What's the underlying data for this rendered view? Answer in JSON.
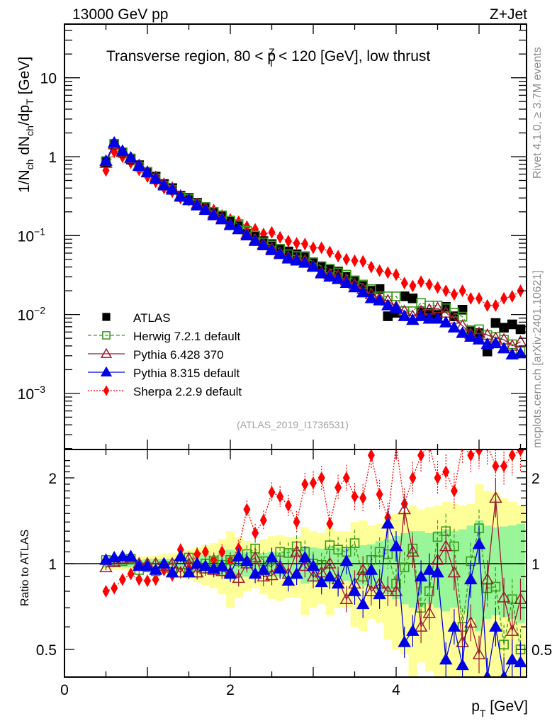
{
  "header": {
    "energy_label": "13000 GeV pp",
    "process_label": "Z+Jet"
  },
  "side_labels": {
    "rivet": "Rivet 4.1.0, ≥ 3.7M events",
    "mcplots": "mcplots.cern.ch [arXiv:2401.10621]"
  },
  "analysis_id": "(ATLAS_2019_I1736531)",
  "chart_data": [
    {
      "type": "scatter",
      "panel": "main",
      "title": "Transverse region, 80 < p_T^Z < 120 [GeV], low thrust",
      "title_parts": {
        "pre": "Transverse region, 80 < p",
        "sup": "Z",
        "sub": "T",
        "post": " < 120 [GeV], low thrust"
      },
      "xlabel": "p_T [GeV]",
      "ylabel": "1/N_ch dN_ch/dp_T [GeV]",
      "yscale": "log",
      "xlim": [
        0,
        5.6
      ],
      "ylim": [
        0.00025,
        45
      ],
      "x_ticks": [
        "0",
        "2",
        "4"
      ],
      "y_ticks": [
        "10",
        "1",
        "10^-1",
        "10^-2",
        "10^-3"
      ],
      "legend_position": "center-left",
      "x": [
        0.5,
        0.6,
        0.7,
        0.8,
        0.9,
        1.0,
        1.1,
        1.2,
        1.3,
        1.4,
        1.5,
        1.6,
        1.7,
        1.8,
        1.9,
        2.0,
        2.1,
        2.2,
        2.3,
        2.4,
        2.5,
        2.6,
        2.7,
        2.8,
        2.9,
        3.0,
        3.1,
        3.2,
        3.3,
        3.4,
        3.5,
        3.6,
        3.7,
        3.8,
        3.9,
        4.0,
        4.1,
        4.2,
        4.3,
        4.4,
        4.5,
        4.6,
        4.7,
        4.8,
        4.9,
        5.0,
        5.1,
        5.2,
        5.3,
        5.4,
        5.5
      ],
      "series": [
        {
          "name": "ATLAS",
          "color": "#000000",
          "marker": "square-filled",
          "line": "none",
          "values": [
            0.85,
            1.42,
            1.12,
            0.92,
            0.78,
            0.64,
            0.56,
            0.45,
            0.4,
            0.32,
            0.3,
            0.26,
            0.23,
            0.2,
            0.18,
            0.15,
            0.13,
            0.105,
            0.1,
            0.085,
            0.078,
            0.068,
            0.063,
            0.058,
            0.053,
            0.046,
            0.04,
            0.037,
            0.035,
            0.03,
            0.027,
            0.023,
            0.02,
            0.021,
            0.0095,
            0.0105,
            0.017,
            0.016,
            0.011,
            0.0105,
            0.01,
            0.0125,
            0.0095,
            0.0115,
            0.0063,
            0.0058,
            0.0034,
            0.0078,
            0.0068,
            0.0075,
            0.0065
          ]
        },
        {
          "name": "Herwig 7.2.1 default",
          "color": "#3a9a1a",
          "marker": "square-open",
          "line": "dashed",
          "values": [
            0.88,
            1.46,
            1.14,
            0.95,
            0.75,
            0.64,
            0.53,
            0.43,
            0.38,
            0.31,
            0.29,
            0.25,
            0.23,
            0.2,
            0.18,
            0.155,
            0.14,
            0.115,
            0.1,
            0.082,
            0.075,
            0.068,
            0.058,
            0.055,
            0.055,
            0.046,
            0.041,
            0.038,
            0.034,
            0.032,
            0.027,
            0.024,
            0.021,
            0.017,
            0.017,
            0.017,
            0.011,
            0.011,
            0.014,
            0.013,
            0.013,
            0.012,
            0.0105,
            0.0094,
            0.0063,
            0.0065,
            0.0055,
            0.0052,
            0.0048,
            0.0042,
            0.0034
          ]
        },
        {
          "name": "Pythia 6.428 370",
          "color": "#9b1b30",
          "marker": "triangle-open",
          "line": "solid",
          "values": [
            0.83,
            1.43,
            1.14,
            0.95,
            0.78,
            0.64,
            0.55,
            0.45,
            0.4,
            0.32,
            0.28,
            0.25,
            0.22,
            0.19,
            0.165,
            0.138,
            0.12,
            0.105,
            0.088,
            0.078,
            0.068,
            0.06,
            0.053,
            0.05,
            0.048,
            0.041,
            0.034,
            0.032,
            0.031,
            0.027,
            0.024,
            0.021,
            0.018,
            0.016,
            0.015,
            0.0125,
            0.011,
            0.0095,
            0.011,
            0.0115,
            0.012,
            0.0105,
            0.0088,
            0.0072,
            0.0056,
            0.0058,
            0.0055,
            0.005,
            0.0048,
            0.004,
            0.0045
          ]
        },
        {
          "name": "Pythia 8.315 default",
          "color": "#0000e6",
          "marker": "triangle-filled",
          "line": "solid",
          "values": [
            0.88,
            1.5,
            1.18,
            0.97,
            0.76,
            0.63,
            0.52,
            0.43,
            0.38,
            0.31,
            0.28,
            0.24,
            0.21,
            0.18,
            0.16,
            0.135,
            0.12,
            0.1,
            0.085,
            0.075,
            0.065,
            0.058,
            0.051,
            0.048,
            0.045,
            0.04,
            0.033,
            0.03,
            0.028,
            0.025,
            0.022,
            0.019,
            0.016,
            0.015,
            0.013,
            0.012,
            0.0095,
            0.0085,
            0.0095,
            0.0088,
            0.0088,
            0.0079,
            0.0068,
            0.0058,
            0.0052,
            0.0048,
            0.0042,
            0.0043,
            0.0037,
            0.0031,
            0.0032
          ]
        },
        {
          "name": "Sherpa 2.2.9 default",
          "color": "#ff0000",
          "marker": "diamond-filled",
          "line": "dotted",
          "values": [
            0.67,
            1.15,
            1.0,
            0.84,
            0.68,
            0.56,
            0.48,
            0.4,
            0.36,
            0.3,
            0.28,
            0.25,
            0.22,
            0.21,
            0.18,
            0.16,
            0.15,
            0.13,
            0.12,
            0.105,
            0.11,
            0.095,
            0.085,
            0.08,
            0.078,
            0.07,
            0.07,
            0.062,
            0.055,
            0.05,
            0.048,
            0.047,
            0.04,
            0.036,
            0.034,
            0.032,
            0.025,
            0.023,
            0.026,
            0.024,
            0.022,
            0.02,
            0.018,
            0.02,
            0.016,
            0.016,
            0.013,
            0.013,
            0.016,
            0.017,
            0.02
          ]
        }
      ]
    },
    {
      "type": "scatter",
      "panel": "ratio",
      "ylabel": "Ratio to ATLAS",
      "xlabel": "p_T [GeV]",
      "yscale": "log",
      "xlim": [
        0,
        5.6
      ],
      "ylim": [
        0.4,
        2.4
      ],
      "x_ticks": [
        "0",
        "2",
        "4"
      ],
      "y_ticks": [
        "2",
        "1",
        "0.5"
      ],
      "reference_line": 1,
      "band_colors": {
        "inner": "#99f599",
        "outer": "#ffff99"
      },
      "band_inner_halfwidth": [
        0.03,
        0.03,
        0.03,
        0.03,
        0.03,
        0.04,
        0.04,
        0.04,
        0.04,
        0.05,
        0.05,
        0.06,
        0.07,
        0.07,
        0.09,
        0.12,
        0.11,
        0.1,
        0.08,
        0.09,
        0.1,
        0.1,
        0.12,
        0.12,
        0.15,
        0.14,
        0.13,
        0.15,
        0.14,
        0.13,
        0.15,
        0.16,
        0.17,
        0.2,
        0.22,
        0.25,
        0.28,
        0.3,
        0.3,
        0.28,
        0.3,
        0.32,
        0.3,
        0.32,
        0.36,
        0.42,
        0.36,
        0.34,
        0.35,
        0.36,
        0.38
      ],
      "band_outer_halfwidth": [
        0.05,
        0.05,
        0.05,
        0.06,
        0.06,
        0.06,
        0.07,
        0.08,
        0.09,
        0.1,
        0.12,
        0.14,
        0.16,
        0.18,
        0.22,
        0.3,
        0.24,
        0.2,
        0.18,
        0.22,
        0.25,
        0.26,
        0.24,
        0.24,
        0.34,
        0.3,
        0.28,
        0.34,
        0.3,
        0.3,
        0.4,
        0.42,
        0.36,
        0.38,
        0.46,
        0.5,
        0.52,
        0.6,
        0.55,
        0.58,
        0.6,
        0.65,
        0.62,
        0.6,
        0.62,
        0.9,
        0.8,
        0.78,
        0.7,
        0.65,
        0.6
      ],
      "x": [
        0.5,
        0.6,
        0.7,
        0.8,
        0.9,
        1.0,
        1.1,
        1.2,
        1.3,
        1.4,
        1.5,
        1.6,
        1.7,
        1.8,
        1.9,
        2.0,
        2.1,
        2.2,
        2.3,
        2.4,
        2.5,
        2.6,
        2.7,
        2.8,
        2.9,
        3.0,
        3.1,
        3.2,
        3.3,
        3.4,
        3.5,
        3.6,
        3.7,
        3.8,
        3.9,
        4.0,
        4.1,
        4.2,
        4.3,
        4.4,
        4.5,
        4.6,
        4.7,
        4.8,
        4.9,
        5.0,
        5.1,
        5.2,
        5.3,
        5.4,
        5.5
      ],
      "series": [
        {
          "name": "Herwig 7.2.1 default",
          "values": [
            1.03,
            1.02,
            1.02,
            1.04,
            0.95,
            0.97,
            0.94,
            0.98,
            0.97,
            0.93,
            1.05,
            0.93,
            1.0,
            1.02,
            0.99,
            1.03,
            1.02,
            1.08,
            1.13,
            1.02,
            0.97,
            1.1,
            1.09,
            1.15,
            1.1,
            1.0,
            0.99,
            1.16,
            1.12,
            1.1,
            1.18,
            0.9,
            1.03,
            1.1,
            1.08,
            0.85,
            0.97,
            1.13,
            0.7,
            0.8,
            1.24,
            1.3,
            1.15,
            0.6,
            1.02,
            1.33,
            0.82,
            0.83,
            0.52,
            0.75,
            0.5
          ]
        },
        {
          "name": "Pythia 6.428 370",
          "values": [
            0.97,
            1.01,
            1.04,
            1.05,
            1.0,
            1.0,
            1.0,
            0.98,
            1.0,
            0.93,
            1.04,
            0.93,
            0.96,
            0.95,
            0.94,
            0.93,
            0.89,
            1.0,
            1.05,
            0.9,
            0.91,
            0.98,
            0.92,
            1.1,
            0.98,
            0.9,
            0.93,
            1.0,
            0.88,
            0.75,
            0.85,
            0.95,
            0.8,
            0.85,
            0.8,
            0.8,
            1.55,
            1.1,
            0.6,
            0.67,
            1.03,
            1.15,
            0.93,
            0.53,
            0.62,
            0.48,
            0.88,
            1.7,
            0.76,
            0.58,
            0.75
          ]
        },
        {
          "name": "Pythia 8.315 default",
          "values": [
            1.03,
            1.05,
            1.06,
            1.06,
            0.98,
            0.98,
            0.95,
            1.0,
            0.93,
            1.06,
            0.93,
            1.0,
            0.98,
            0.96,
            0.98,
            0.92,
            1.06,
            1.02,
            0.92,
            0.95,
            1.05,
            0.96,
            0.87,
            0.92,
            1.05,
            0.98,
            0.86,
            0.9,
            0.85,
            1.02,
            0.8,
            0.72,
            0.95,
            0.78,
            1.38,
            1.15,
            0.53,
            0.58,
            0.9,
            0.95,
            0.93,
            0.46,
            0.6,
            0.44,
            0.88,
            1.17,
            0.4,
            0.6,
            0.4,
            0.46,
            0.45
          ]
        },
        {
          "name": "Sherpa 2.2.9 default",
          "values": [
            0.8,
            0.82,
            0.88,
            0.92,
            0.88,
            0.87,
            0.88,
            0.95,
            0.91,
            1.12,
            0.96,
            1.08,
            1.1,
            1.03,
            1.1,
            1.02,
            1.13,
            1.55,
            1.28,
            1.42,
            1.78,
            1.72,
            1.6,
            1.4,
            1.9,
            1.92,
            2.0,
            1.38,
            1.85,
            2.0,
            1.72,
            1.7,
            2.4,
            1.75,
            1.45,
            2.6,
            1.62,
            2.0,
            2.4,
            2.6,
            2.0,
            2.1,
            1.8,
            2.6,
            2.4,
            2.5,
            2.6,
            2.2,
            2.2,
            2.4,
            2.5
          ]
        }
      ]
    }
  ]
}
